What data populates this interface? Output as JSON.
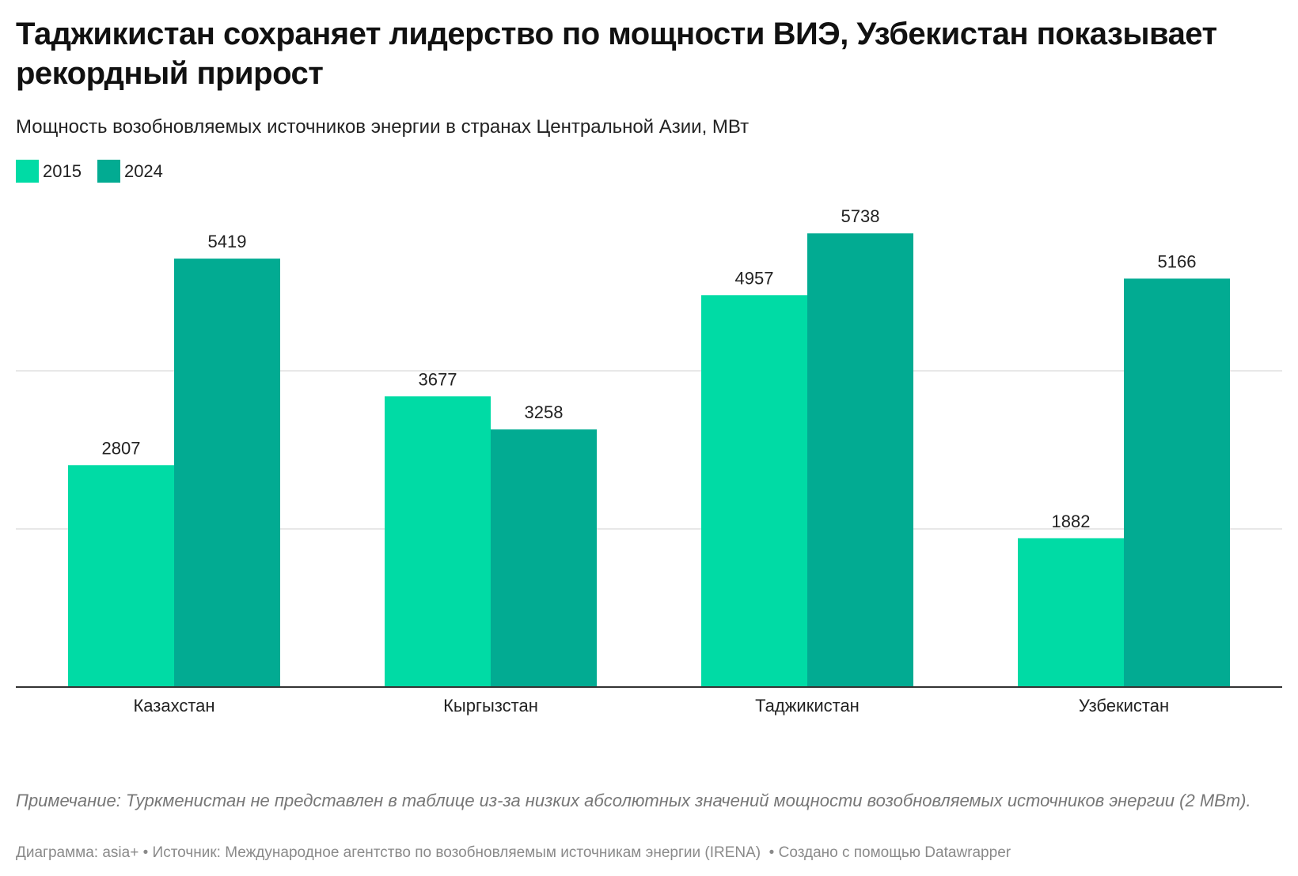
{
  "header": {
    "title": "Таджикистан сохраняет лидерство по мощности ВИЭ, Узбекистан показывает рекордный прирост",
    "subtitle": "Мощность возобновляемых источников энергии в странах Центральной Азии, МВт"
  },
  "legend": {
    "items": [
      {
        "label": "2015",
        "color": "#00dba5"
      },
      {
        "label": "2024",
        "color": "#02ab92"
      }
    ]
  },
  "chart_data": {
    "type": "bar",
    "title": "Таджикистан сохраняет лидерство по мощности ВИЭ, Узбекистан показывает рекордный прирост",
    "subtitle": "Мощность возобновляемых источников энергии в странах Центральной Азии, МВт",
    "categories": [
      "Казахстан",
      "Кыргызстан",
      "Таджикистан",
      "Узбекистан"
    ],
    "series": [
      {
        "name": "2015",
        "color": "#00dba5",
        "values": [
          2807,
          3677,
          4957,
          1882
        ]
      },
      {
        "name": "2024",
        "color": "#02ab92",
        "values": [
          5419,
          3258,
          5738,
          5166
        ]
      }
    ],
    "xlabel": "",
    "ylabel": "",
    "ylim": [
      0,
      6000
    ],
    "gridlines": [
      2000,
      4000
    ],
    "grid": true,
    "legend_position": "top-left"
  },
  "footer": {
    "note": "Примечание: Туркменистан не представлен в таблице из-за низких абсолютных значений мощности возобновляемых источников энергии (2 МВт).",
    "credit_chart": "Диаграмма: asia+",
    "credit_source": "Источник: Международное агентство по возобновляемым источникам энергии (IRENA)",
    "credit_tool": "Создано с помощью Datawrapper"
  }
}
